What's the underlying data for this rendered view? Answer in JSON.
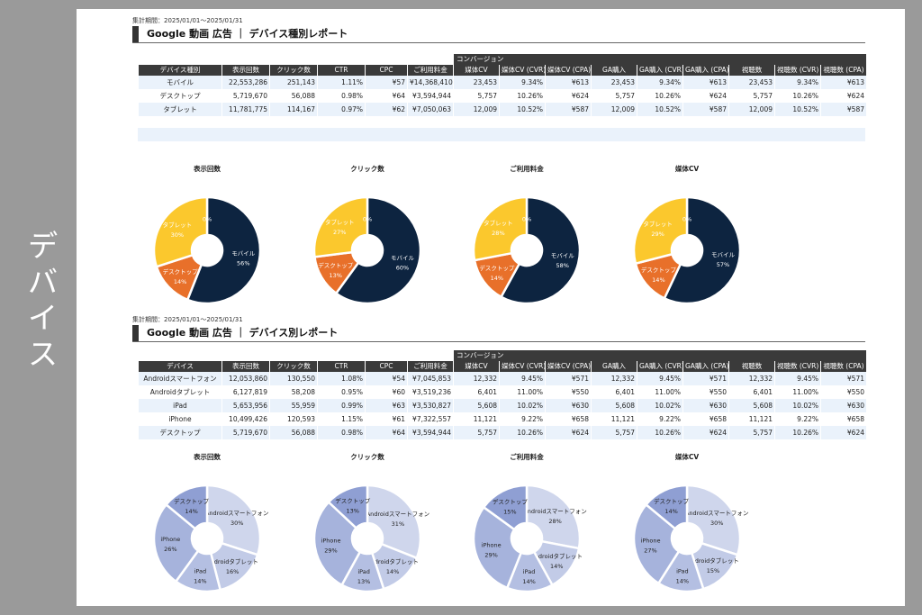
{
  "side_label": "デバイス",
  "sections": [
    {
      "period": "集計期間：2025/01/01～2025/01/31",
      "title": "Google 動画 広告 ｜ デバイス種別レポート",
      "conversion_group_label": "コンバージョン",
      "headers": [
        "デバイス種別",
        "表示回数",
        "クリック数",
        "CTR",
        "CPC",
        "ご利用料金",
        "媒体CV",
        "媒体CV (CVR)",
        "媒体CV (CPA)",
        "GA購入",
        "GA購入 (CVR)",
        "GA購入 (CPA)",
        "視聴数",
        "視聴数 (CVR)",
        "視聴数 (CPA)"
      ],
      "rows": [
        [
          "モバイル",
          "22,553,286",
          "251,143",
          "1.11%",
          "¥57",
          "¥14,368,410",
          "23,453",
          "9.34%",
          "¥613",
          "23,453",
          "9.34%",
          "¥613",
          "23,453",
          "9.34%",
          "¥613"
        ],
        [
          "デスクトップ",
          "5,719,670",
          "56,088",
          "0.98%",
          "¥64",
          "¥3,594,944",
          "5,757",
          "10.26%",
          "¥624",
          "5,757",
          "10.26%",
          "¥624",
          "5,757",
          "10.26%",
          "¥624"
        ],
        [
          "タブレット",
          "11,781,775",
          "114,167",
          "0.97%",
          "¥62",
          "¥7,050,063",
          "12,009",
          "10.52%",
          "¥587",
          "12,009",
          "10.52%",
          "¥587",
          "12,009",
          "10.52%",
          "¥587"
        ]
      ]
    },
    {
      "period": "集計期間：2025/01/01～2025/01/31",
      "title": "Google 動画 広告 ｜ デバイス別レポート",
      "conversion_group_label": "コンバージョン",
      "headers": [
        "デバイス",
        "表示回数",
        "クリック数",
        "CTR",
        "CPC",
        "ご利用料金",
        "媒体CV",
        "媒体CV (CVR)",
        "媒体CV (CPA)",
        "GA購入",
        "GA購入 (CVR)",
        "GA購入 (CPA)",
        "視聴数",
        "視聴数 (CVR)",
        "視聴数 (CPA)"
      ],
      "rows": [
        [
          "Androidスマートフォン",
          "12,053,860",
          "130,550",
          "1.08%",
          "¥54",
          "¥7,045,853",
          "12,332",
          "9.45%",
          "¥571",
          "12,332",
          "9.45%",
          "¥571",
          "12,332",
          "9.45%",
          "¥571"
        ],
        [
          "Androidタブレット",
          "6,127,819",
          "58,208",
          "0.95%",
          "¥60",
          "¥3,519,236",
          "6,401",
          "11.00%",
          "¥550",
          "6,401",
          "11.00%",
          "¥550",
          "6,401",
          "11.00%",
          "¥550"
        ],
        [
          "iPad",
          "5,653,956",
          "55,959",
          "0.99%",
          "¥63",
          "¥3,530,827",
          "5,608",
          "10.02%",
          "¥630",
          "5,608",
          "10.02%",
          "¥630",
          "5,608",
          "10.02%",
          "¥630"
        ],
        [
          "iPhone",
          "10,499,426",
          "120,593",
          "1.15%",
          "¥61",
          "¥7,322,557",
          "11,121",
          "9.22%",
          "¥658",
          "11,121",
          "9.22%",
          "¥658",
          "11,121",
          "9.22%",
          "¥658"
        ],
        [
          "デスクトップ",
          "5,719,670",
          "56,088",
          "0.98%",
          "¥64",
          "¥3,594,944",
          "5,757",
          "10.26%",
          "¥624",
          "5,757",
          "10.26%",
          "¥624",
          "5,757",
          "10.26%",
          "¥624"
        ]
      ]
    }
  ],
  "chart_data": [
    {
      "type": "pie",
      "group": "device-type",
      "title": "表示回数",
      "labels": [
        "モバイル",
        "デスクトップ",
        "タブレット",
        ""
      ],
      "values": [
        56,
        14,
        30,
        0
      ],
      "display": [
        "56%",
        "14%",
        "30%",
        "0%"
      ],
      "colors": [
        "#0d2440",
        "#e8702a",
        "#fbc82d",
        "#fbc82d"
      ],
      "label_color": "#ffffff"
    },
    {
      "type": "pie",
      "group": "device-type",
      "title": "クリック数",
      "labels": [
        "モバイル",
        "デスクトップ",
        "タブレット",
        ""
      ],
      "values": [
        60,
        13,
        27,
        0
      ],
      "display": [
        "60%",
        "13%",
        "27%",
        "0%"
      ],
      "colors": [
        "#0d2440",
        "#e8702a",
        "#fbc82d",
        "#fbc82d"
      ],
      "label_color": "#ffffff"
    },
    {
      "type": "pie",
      "group": "device-type",
      "title": "ご利用料金",
      "labels": [
        "モバイル",
        "デスクトップ",
        "タブレット",
        ""
      ],
      "values": [
        58,
        14,
        28,
        0
      ],
      "display": [
        "58%",
        "14%",
        "28%",
        "0%"
      ],
      "colors": [
        "#0d2440",
        "#e8702a",
        "#fbc82d",
        "#fbc82d"
      ],
      "label_color": "#ffffff"
    },
    {
      "type": "pie",
      "group": "device-type",
      "title": "媒体CV",
      "labels": [
        "モバイル",
        "デスクトップ",
        "タブレット",
        ""
      ],
      "values": [
        57,
        14,
        29,
        0
      ],
      "display": [
        "57%",
        "14%",
        "29%",
        "0%"
      ],
      "colors": [
        "#0d2440",
        "#e8702a",
        "#fbc82d",
        "#fbc82d"
      ],
      "label_color": "#ffffff"
    },
    {
      "type": "pie",
      "group": "device",
      "title": "表示回数",
      "labels": [
        "Androidスマートフォン",
        "Androidタブレット",
        "iPad",
        "iPhone",
        "デスクトップ"
      ],
      "values": [
        30,
        16,
        14,
        26,
        14
      ],
      "display": [
        "30%",
        "16%",
        "14%",
        "26%",
        "14%"
      ],
      "colors": [
        "#cfd6ec",
        "#c2cbe7",
        "#b4bfe2",
        "#a6b3dc",
        "#8f9fd3"
      ],
      "label_color": "#222222"
    },
    {
      "type": "pie",
      "group": "device",
      "title": "クリック数",
      "labels": [
        "Androidスマートフォン",
        "Androidタブレット",
        "iPad",
        "iPhone",
        "デスクトップ"
      ],
      "values": [
        31,
        14,
        13,
        29,
        13
      ],
      "display": [
        "31%",
        "14%",
        "13%",
        "29%",
        "13%"
      ],
      "colors": [
        "#cfd6ec",
        "#c2cbe7",
        "#b4bfe2",
        "#a6b3dc",
        "#8f9fd3"
      ],
      "label_color": "#222222"
    },
    {
      "type": "pie",
      "group": "device",
      "title": "ご利用料金",
      "labels": [
        "Androidスマートフォン",
        "Androidタブレット",
        "iPad",
        "iPhone",
        "デスクトップ"
      ],
      "values": [
        28,
        14,
        14,
        29,
        15
      ],
      "display": [
        "28%",
        "14%",
        "14%",
        "29%",
        "15%"
      ],
      "colors": [
        "#cfd6ec",
        "#c2cbe7",
        "#b4bfe2",
        "#a6b3dc",
        "#8f9fd3"
      ],
      "label_color": "#222222"
    },
    {
      "type": "pie",
      "group": "device",
      "title": "媒体CV",
      "labels": [
        "Androidスマートフォン",
        "Androidタブレット",
        "iPad",
        "iPhone",
        "デスクトップ"
      ],
      "values": [
        30,
        15,
        14,
        27,
        14
      ],
      "display": [
        "30%",
        "15%",
        "14%",
        "27%",
        "14%"
      ],
      "colors": [
        "#cfd6ec",
        "#c2cbe7",
        "#b4bfe2",
        "#a6b3dc",
        "#8f9fd3"
      ],
      "label_color": "#222222"
    }
  ]
}
